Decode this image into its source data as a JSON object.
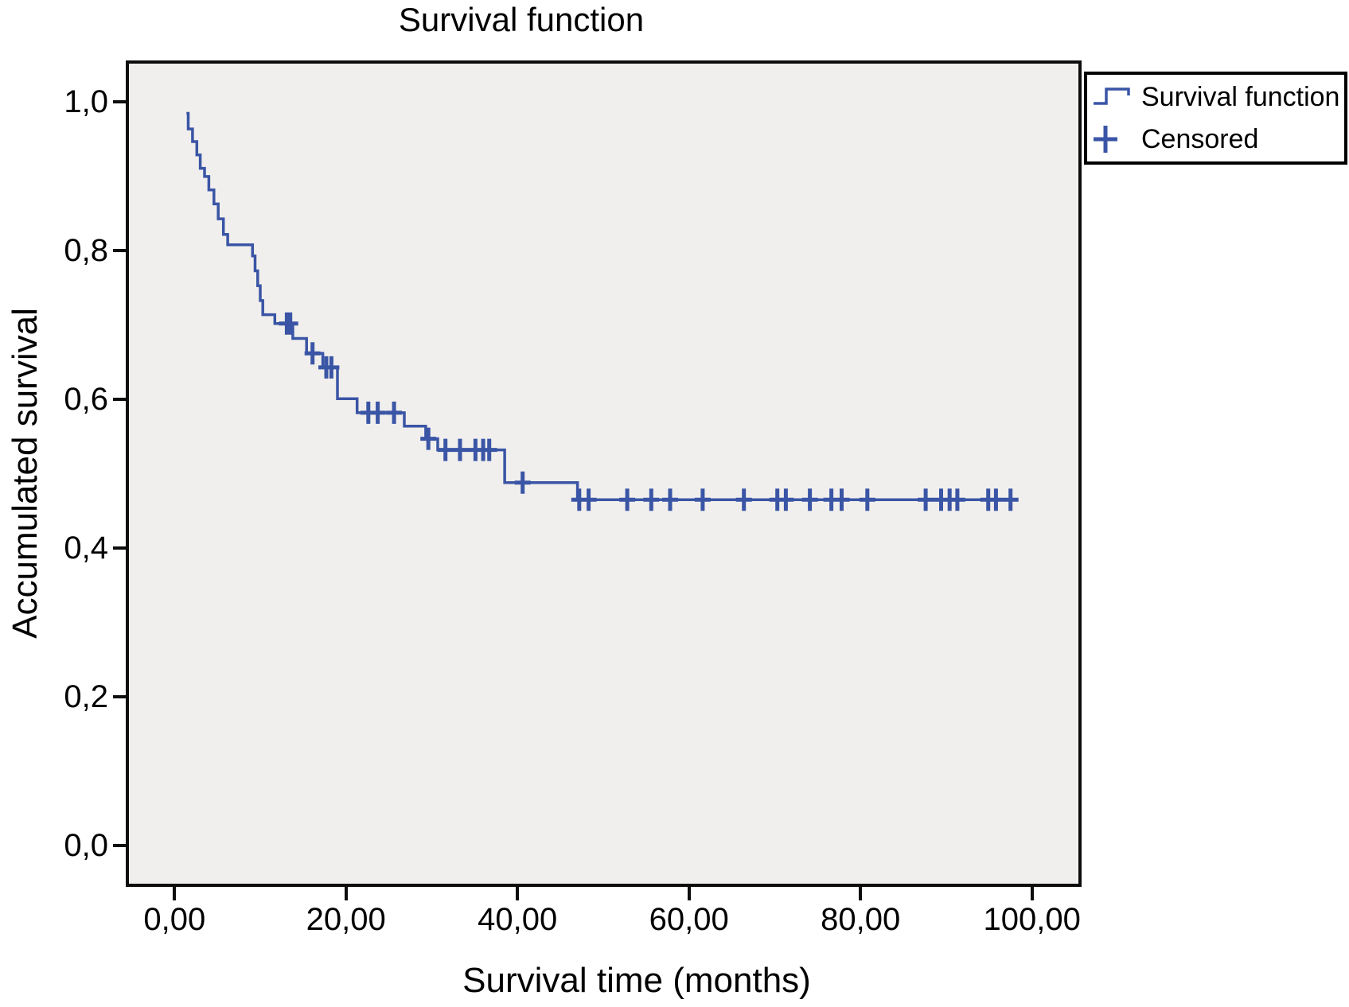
{
  "title": "Survival function",
  "x_axis": {
    "label": "Survival time (months)",
    "ticks": [
      "0,00",
      "20,00",
      "40,00",
      "60,00",
      "80,00",
      "100,00"
    ],
    "tick_values": [
      0,
      20,
      40,
      60,
      80,
      100
    ]
  },
  "y_axis": {
    "label": "Accumulated survival",
    "ticks": [
      "0,0",
      "0,2",
      "0,4",
      "0,6",
      "0,8",
      "1,0"
    ],
    "tick_values": [
      0,
      0.2,
      0.4,
      0.6,
      0.8,
      1.0
    ]
  },
  "legend": {
    "items": [
      {
        "label": "Survival function",
        "symbol": "step-line-icon"
      },
      {
        "label": "Censored",
        "symbol": "plus-icon"
      }
    ]
  },
  "colors": {
    "series": "#3a55a5",
    "plot_background": "#f0efed",
    "frame": "#0d0d0d",
    "text": "#000000"
  },
  "chart_data": {
    "type": "line",
    "subtype": "kaplan-meier-step",
    "title": "Survival function",
    "xlabel": "Survival time (months)",
    "ylabel": "Accumulated survival",
    "xlim": [
      -5.5,
      105.6
    ],
    "ylim": [
      -0.054,
      1.054
    ],
    "xticks": [
      0,
      20,
      40,
      60,
      80,
      100
    ],
    "yticks": [
      0,
      0.2,
      0.4,
      0.6,
      0.8,
      1.0
    ],
    "grid": false,
    "legend_position": "outside-top-right",
    "series": [
      {
        "name": "Survival function",
        "style": "step-post",
        "end_time": 98.3,
        "points": [
          [
            1.4,
            0.985
          ],
          [
            1.6,
            0.964
          ],
          [
            2.1,
            0.947
          ],
          [
            2.6,
            0.929
          ],
          [
            3.0,
            0.911
          ],
          [
            3.5,
            0.9
          ],
          [
            4.0,
            0.882
          ],
          [
            4.6,
            0.863
          ],
          [
            5.1,
            0.843
          ],
          [
            5.7,
            0.822
          ],
          [
            6.2,
            0.808
          ],
          [
            9.1,
            0.793
          ],
          [
            9.4,
            0.773
          ],
          [
            9.7,
            0.753
          ],
          [
            10.0,
            0.733
          ],
          [
            10.3,
            0.714
          ],
          [
            11.7,
            0.702
          ],
          [
            13.8,
            0.682
          ],
          [
            15.4,
            0.662
          ],
          [
            17.3,
            0.643
          ],
          [
            19.0,
            0.601
          ],
          [
            21.3,
            0.582
          ],
          [
            26.8,
            0.564
          ],
          [
            29.3,
            0.547
          ],
          [
            30.7,
            0.532
          ],
          [
            38.5,
            0.488
          ],
          [
            47.0,
            0.465
          ]
        ]
      }
    ],
    "censored": [
      [
        13.1,
        0.702
      ],
      [
        13.5,
        0.702
      ],
      [
        16.1,
        0.662
      ],
      [
        17.7,
        0.643
      ],
      [
        18.3,
        0.643
      ],
      [
        22.6,
        0.582
      ],
      [
        23.7,
        0.582
      ],
      [
        25.6,
        0.582
      ],
      [
        29.6,
        0.547
      ],
      [
        31.6,
        0.532
      ],
      [
        33.3,
        0.532
      ],
      [
        35.1,
        0.532
      ],
      [
        36.0,
        0.532
      ],
      [
        36.7,
        0.532
      ],
      [
        40.6,
        0.488
      ],
      [
        47.2,
        0.465
      ],
      [
        48.3,
        0.465
      ],
      [
        52.8,
        0.465
      ],
      [
        55.6,
        0.465
      ],
      [
        57.8,
        0.465
      ],
      [
        61.6,
        0.465
      ],
      [
        66.4,
        0.465
      ],
      [
        70.3,
        0.465
      ],
      [
        71.3,
        0.465
      ],
      [
        74.1,
        0.465
      ],
      [
        76.6,
        0.465
      ],
      [
        77.8,
        0.465
      ],
      [
        80.8,
        0.465
      ],
      [
        87.6,
        0.465
      ],
      [
        89.4,
        0.465
      ],
      [
        90.4,
        0.465
      ],
      [
        91.3,
        0.465
      ],
      [
        94.9,
        0.465
      ],
      [
        95.8,
        0.465
      ],
      [
        97.5,
        0.465
      ]
    ]
  }
}
